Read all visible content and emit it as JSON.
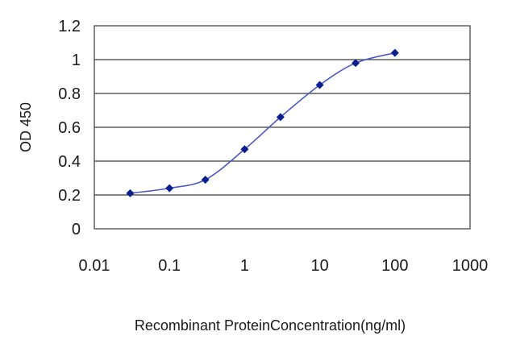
{
  "chart_data": {
    "type": "line",
    "title": "",
    "xlabel": "Recombinant ProteinConcentration(ng/ml)",
    "ylabel": "OD 450",
    "x_scale": "log",
    "xlim": [
      0.01,
      1000
    ],
    "ylim": [
      0,
      1.2
    ],
    "x_ticks": [
      "0.01",
      "0.1",
      "1",
      "10",
      "100",
      "1000"
    ],
    "y_ticks": [
      "0",
      "0.2",
      "0.4",
      "0.6",
      "0.8",
      "1",
      "1.2"
    ],
    "grid": "horizontal",
    "series": [
      {
        "x": [
          0.03,
          0.1,
          0.3,
          1,
          3,
          10,
          30,
          100
        ],
        "y": [
          0.21,
          0.24,
          0.29,
          0.47,
          0.66,
          0.85,
          0.98,
          1.04
        ]
      }
    ]
  },
  "colors": {
    "line": "#4a58c8",
    "marker": "#0a1f8f",
    "frame": "#3a3a3a",
    "grid": "#3a3a3a"
  }
}
